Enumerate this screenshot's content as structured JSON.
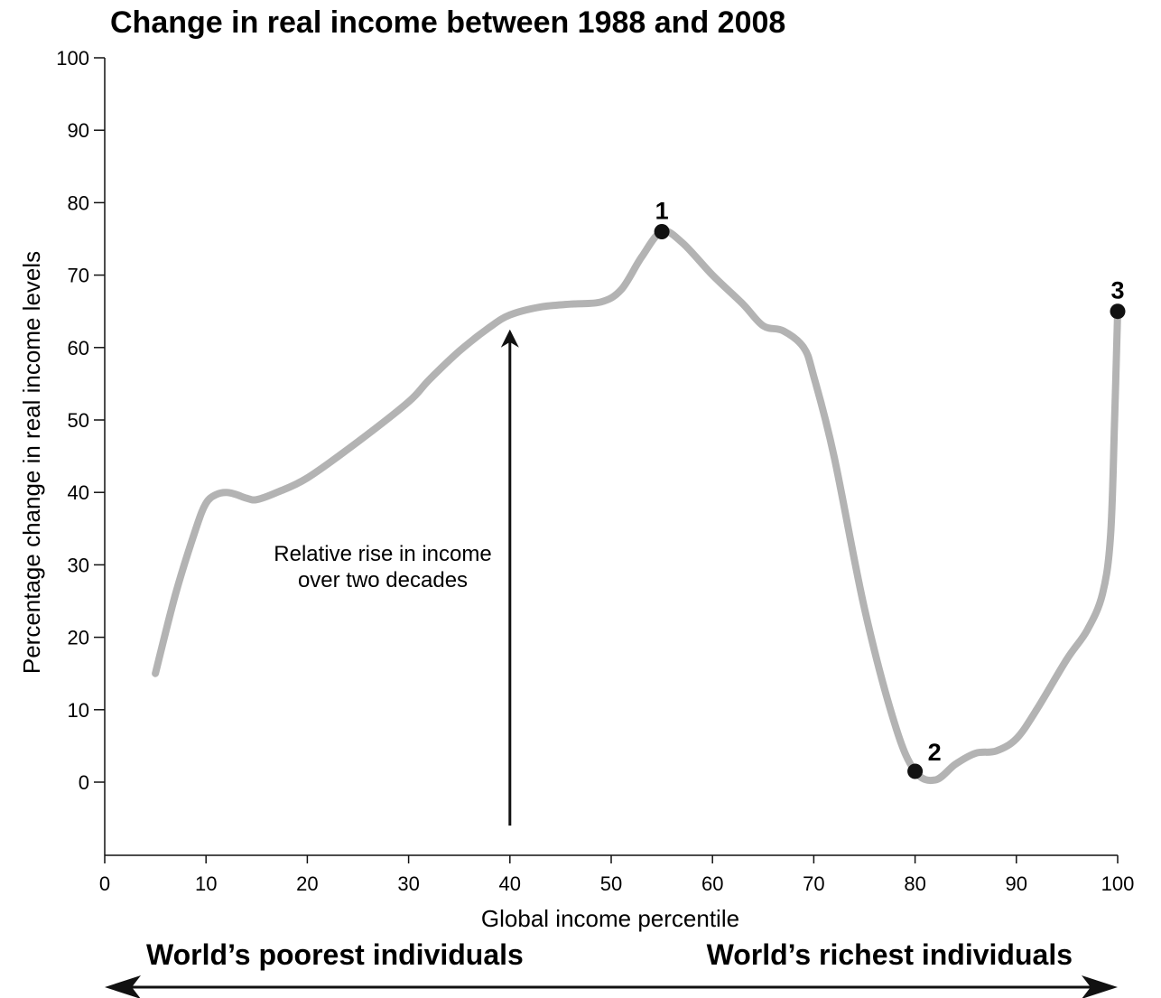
{
  "chart_data": {
    "type": "line",
    "title": "Change in real income between 1988 and 2008",
    "xlabel": "Global income percentile",
    "ylabel": "Percentage change in real income levels",
    "xlim": [
      0,
      100
    ],
    "ylim": [
      -10,
      100
    ],
    "x_ticks": [
      "0",
      "10",
      "20",
      "30",
      "40",
      "50",
      "60",
      "70",
      "80",
      "90",
      "100"
    ],
    "y_ticks": [
      "0",
      "10",
      "20",
      "30",
      "40",
      "50",
      "60",
      "70",
      "80",
      "90",
      "100"
    ],
    "grid": false,
    "series": [
      {
        "color": "#b3b3b3",
        "x": [
          5,
          7,
          9,
          10,
          11,
          12,
          13,
          14,
          15,
          17,
          20,
          25,
          30,
          32,
          35,
          38,
          40,
          43,
          46,
          49,
          51,
          53,
          55,
          57,
          60,
          63,
          65,
          67,
          69,
          70,
          72,
          75,
          78,
          80,
          82,
          84,
          86,
          88,
          90,
          92,
          95,
          97,
          98.5,
          99.3,
          99.7,
          100
        ],
        "y": [
          15,
          26,
          35,
          38.5,
          39.7,
          40,
          39.7,
          39.2,
          39,
          40,
          42,
          47,
          52.5,
          55.5,
          59.5,
          62.8,
          64.5,
          65.6,
          66,
          66.3,
          68,
          72.5,
          76,
          74.5,
          70,
          66,
          63,
          62.3,
          60,
          56,
          45,
          24,
          8,
          1.5,
          0.3,
          2.5,
          4,
          4.3,
          6,
          10,
          17,
          21,
          26,
          34,
          50,
          65
        ]
      }
    ],
    "points": [
      {
        "x": 55,
        "y": 76,
        "label": "1"
      },
      {
        "x": 80,
        "y": 1.5,
        "label": "2"
      },
      {
        "x": 100,
        "y": 65,
        "label": "3"
      }
    ],
    "annotation": {
      "text_line1": "Relative rise in income",
      "text_line2": "over two decades",
      "arrow_x": 40,
      "arrow_from_y": -6,
      "arrow_to_y": 62.5
    },
    "bottom_labels": {
      "left": "World’s poorest individuals",
      "right": "World’s richest individuals"
    },
    "colors": {
      "line": "#b3b3b3",
      "ink": "#111111"
    }
  }
}
